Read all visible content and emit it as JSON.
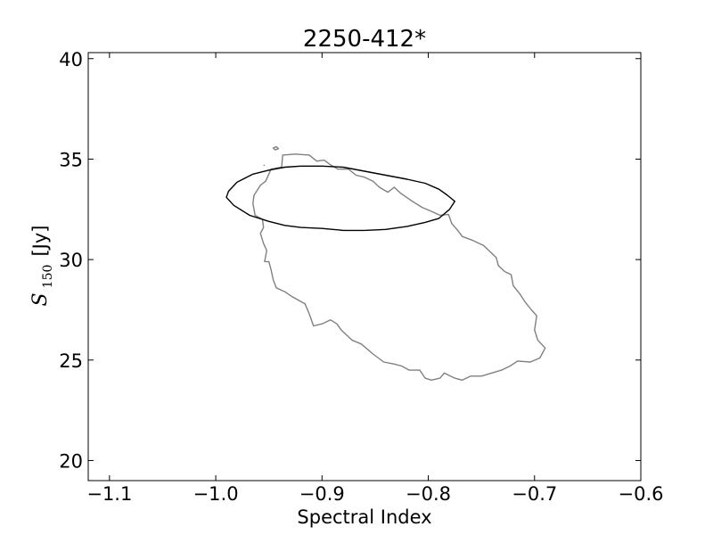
{
  "chart_data": {
    "type": "line",
    "title": "2250-412*",
    "xlabel": "Spectral Index",
    "ylabel": {
      "symbol": "S",
      "subscript": "150",
      "unit": "[Jy]"
    },
    "xlim": [
      -1.12,
      -0.6
    ],
    "ylim": [
      19,
      40.3
    ],
    "x_ticks": [
      -1.1,
      -1.0,
      -0.9,
      -0.8,
      -0.7,
      -0.6
    ],
    "x_tick_labels": [
      "−1.1",
      "−1.0",
      "−0.9",
      "−0.8",
      "−0.7",
      "−0.6"
    ],
    "y_ticks": [
      20,
      25,
      30,
      35,
      40
    ],
    "y_tick_labels": [
      "20",
      "25",
      "30",
      "35",
      "40"
    ],
    "grid": false,
    "series": [
      {
        "color": "#808080",
        "closed": true,
        "points": [
          [
            -0.937,
            35.2
          ],
          [
            -0.925,
            35.25
          ],
          [
            -0.912,
            35.2
          ],
          [
            -0.905,
            34.9
          ],
          [
            -0.898,
            34.95
          ],
          [
            -0.893,
            34.75
          ],
          [
            -0.885,
            34.5
          ],
          [
            -0.875,
            34.5
          ],
          [
            -0.868,
            34.2
          ],
          [
            -0.86,
            34.1
          ],
          [
            -0.852,
            33.9
          ],
          [
            -0.846,
            33.6
          ],
          [
            -0.838,
            33.35
          ],
          [
            -0.832,
            33.6
          ],
          [
            -0.826,
            33.3
          ],
          [
            -0.815,
            32.9
          ],
          [
            -0.806,
            32.6
          ],
          [
            -0.797,
            32.4
          ],
          [
            -0.789,
            32.2
          ],
          [
            -0.781,
            32.25
          ],
          [
            -0.778,
            31.8
          ],
          [
            -0.773,
            31.5
          ],
          [
            -0.768,
            31.15
          ],
          [
            -0.758,
            30.95
          ],
          [
            -0.748,
            30.7
          ],
          [
            -0.741,
            30.35
          ],
          [
            -0.736,
            30.1
          ],
          [
            -0.734,
            29.7
          ],
          [
            -0.728,
            29.4
          ],
          [
            -0.722,
            29.25
          ],
          [
            -0.72,
            28.7
          ],
          [
            -0.714,
            28.3
          ],
          [
            -0.709,
            27.9
          ],
          [
            -0.703,
            27.5
          ],
          [
            -0.698,
            27.2
          ],
          [
            -0.7,
            26.5
          ],
          [
            -0.697,
            26.0
          ],
          [
            -0.69,
            25.6
          ],
          [
            -0.695,
            25.1
          ],
          [
            -0.704,
            24.9
          ],
          [
            -0.716,
            24.95
          ],
          [
            -0.723,
            24.7
          ],
          [
            -0.731,
            24.5
          ],
          [
            -0.75,
            24.2
          ],
          [
            -0.76,
            24.2
          ],
          [
            -0.768,
            24.0
          ],
          [
            -0.775,
            24.1
          ],
          [
            -0.785,
            24.35
          ],
          [
            -0.789,
            24.1
          ],
          [
            -0.797,
            24.0
          ],
          [
            -0.803,
            24.1
          ],
          [
            -0.808,
            24.5
          ],
          [
            -0.818,
            24.5
          ],
          [
            -0.825,
            24.7
          ],
          [
            -0.832,
            24.8
          ],
          [
            -0.842,
            24.9
          ],
          [
            -0.852,
            25.3
          ],
          [
            -0.863,
            25.8
          ],
          [
            -0.872,
            26.0
          ],
          [
            -0.882,
            26.5
          ],
          [
            -0.886,
            26.8
          ],
          [
            -0.892,
            27.0
          ],
          [
            -0.9,
            26.8
          ],
          [
            -0.908,
            26.7
          ],
          [
            -0.912,
            27.3
          ],
          [
            -0.916,
            27.8
          ],
          [
            -0.928,
            28.15
          ],
          [
            -0.935,
            28.4
          ],
          [
            -0.943,
            28.6
          ],
          [
            -0.946,
            29.0
          ],
          [
            -0.948,
            29.5
          ],
          [
            -0.95,
            29.9
          ],
          [
            -0.954,
            29.9
          ],
          [
            -0.952,
            30.45
          ],
          [
            -0.955,
            30.8
          ],
          [
            -0.958,
            31.3
          ],
          [
            -0.955,
            31.6
          ],
          [
            -0.956,
            32.0
          ],
          [
            -0.963,
            32.2
          ],
          [
            -0.965,
            32.8
          ],
          [
            -0.964,
            33.2
          ],
          [
            -0.958,
            33.7
          ],
          [
            -0.953,
            33.9
          ],
          [
            -0.948,
            34.5
          ],
          [
            -0.938,
            34.6
          ],
          [
            -0.937,
            35.2
          ]
        ]
      },
      {
        "color": "#000000",
        "closed": true,
        "points": [
          [
            -0.988,
            33.4
          ],
          [
            -0.98,
            33.85
          ],
          [
            -0.965,
            34.25
          ],
          [
            -0.95,
            34.45
          ],
          [
            -0.935,
            34.6
          ],
          [
            -0.92,
            34.65
          ],
          [
            -0.9,
            34.65
          ],
          [
            -0.88,
            34.6
          ],
          [
            -0.86,
            34.4
          ],
          [
            -0.84,
            34.2
          ],
          [
            -0.82,
            34.0
          ],
          [
            -0.803,
            33.8
          ],
          [
            -0.79,
            33.5
          ],
          [
            -0.782,
            33.2
          ],
          [
            -0.775,
            32.9
          ],
          [
            -0.78,
            32.5
          ],
          [
            -0.79,
            32.05
          ],
          [
            -0.803,
            31.85
          ],
          [
            -0.82,
            31.65
          ],
          [
            -0.84,
            31.5
          ],
          [
            -0.86,
            31.45
          ],
          [
            -0.88,
            31.45
          ],
          [
            -0.9,
            31.55
          ],
          [
            -0.92,
            31.6
          ],
          [
            -0.935,
            31.7
          ],
          [
            -0.95,
            31.9
          ],
          [
            -0.968,
            32.2
          ],
          [
            -0.983,
            32.7
          ],
          [
            -0.99,
            33.1
          ],
          [
            -0.988,
            33.4
          ]
        ]
      },
      {
        "color": "#808080",
        "closed": true,
        "points": [
          [
            -0.946,
            35.55
          ],
          [
            -0.943,
            35.62
          ],
          [
            -0.941,
            35.52
          ],
          [
            -0.944,
            35.46
          ],
          [
            -0.946,
            35.55
          ]
        ]
      },
      {
        "color": "#808080",
        "closed": false,
        "points": [
          [
            -0.955,
            34.7
          ],
          [
            -0.954,
            34.68
          ]
        ]
      }
    ]
  }
}
